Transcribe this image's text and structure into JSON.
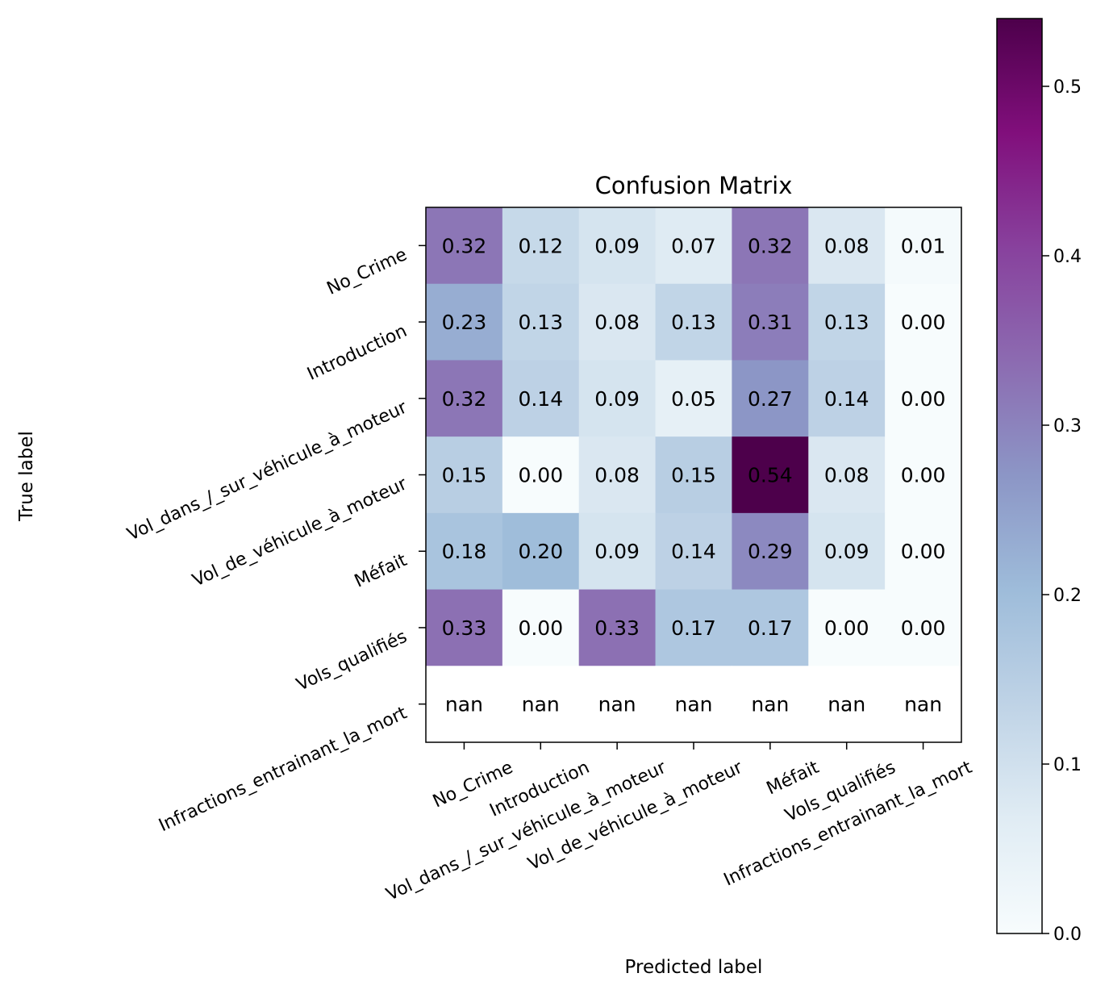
{
  "chart_data": {
    "type": "heatmap",
    "title": "Confusion Matrix",
    "xlabel": "Predicted label",
    "ylabel": "True label",
    "x_categories": [
      "No_Crime",
      "Introduction",
      "Vol_dans_/_sur_véhicule_à_moteur",
      "Vol_de_véhicule_à_moteur",
      "Méfait",
      "Vols_qualifiés",
      "Infractions_entrainant_la_mort"
    ],
    "y_categories": [
      "No_Crime",
      "Introduction",
      "Vol_dans_/_sur_véhicule_à_moteur",
      "Vol_de_véhicule_à_moteur",
      "Méfait",
      "Vols_qualifiés",
      "Infractions_entrainant_la_mort"
    ],
    "values": [
      [
        0.32,
        0.12,
        0.09,
        0.07,
        0.32,
        0.08,
        0.01
      ],
      [
        0.23,
        0.13,
        0.08,
        0.13,
        0.31,
        0.13,
        0.0
      ],
      [
        0.32,
        0.14,
        0.09,
        0.05,
        0.27,
        0.14,
        0.0
      ],
      [
        0.15,
        0.0,
        0.08,
        0.15,
        0.54,
        0.08,
        0.0
      ],
      [
        0.18,
        0.2,
        0.09,
        0.14,
        0.29,
        0.09,
        0.0
      ],
      [
        0.33,
        0.0,
        0.33,
        0.17,
        0.17,
        0.0,
        0.0
      ],
      [
        null,
        null,
        null,
        null,
        null,
        null,
        null
      ]
    ],
    "cell_labels": [
      [
        "0.32",
        "0.12",
        "0.09",
        "0.07",
        "0.32",
        "0.08",
        "0.01"
      ],
      [
        "0.23",
        "0.13",
        "0.08",
        "0.13",
        "0.31",
        "0.13",
        "0.00"
      ],
      [
        "0.32",
        "0.14",
        "0.09",
        "0.05",
        "0.27",
        "0.14",
        "0.00"
      ],
      [
        "0.15",
        "0.00",
        "0.08",
        "0.15",
        "0.54",
        "0.08",
        "0.00"
      ],
      [
        "0.18",
        "0.20",
        "0.09",
        "0.14",
        "0.29",
        "0.09",
        "0.00"
      ],
      [
        "0.33",
        "0.00",
        "0.33",
        "0.17",
        "0.17",
        "0.00",
        "0.00"
      ],
      [
        "nan",
        "nan",
        "nan",
        "nan",
        "nan",
        "nan",
        "nan"
      ]
    ],
    "colormap": "BuPu",
    "colormap_stops": [
      "#f7fcfd",
      "#e0ecf4",
      "#bfd3e6",
      "#9ebcda",
      "#8c96c6",
      "#8c6bb1",
      "#88419d",
      "#810f7c",
      "#4d004b"
    ],
    "nan_color": "#ffffff",
    "color_range": [
      0.0,
      0.54
    ],
    "colorbar_ticks": [
      "0.0",
      "0.1",
      "0.2",
      "0.3",
      "0.4",
      "0.5"
    ],
    "grid": false,
    "legend": "colorbar-right"
  }
}
